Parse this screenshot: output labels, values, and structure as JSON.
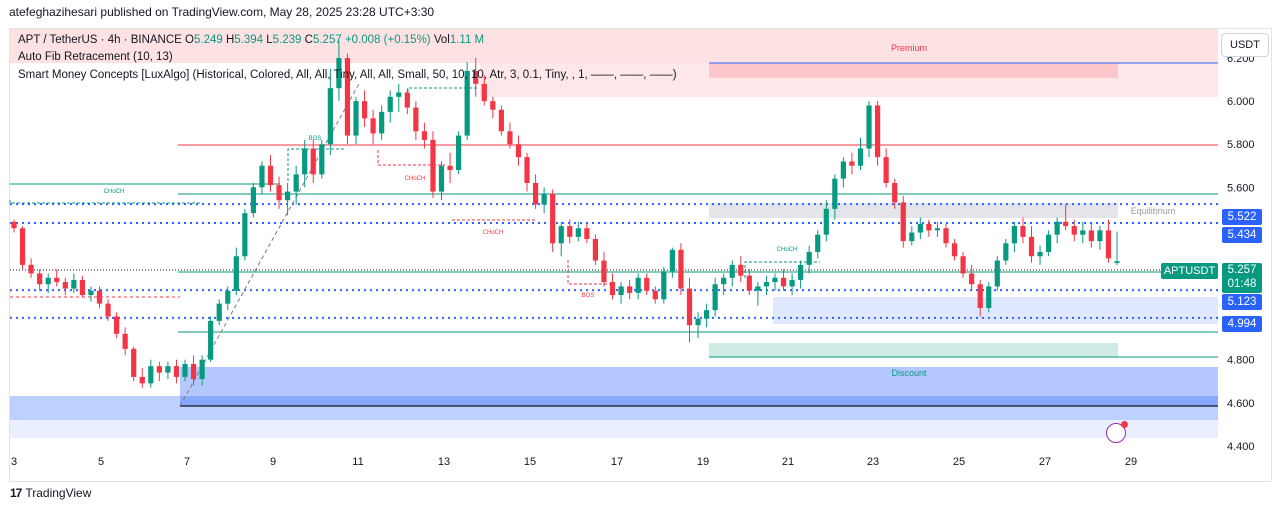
{
  "header": {
    "text": "atefeghazihesari published on TradingView.com, May 28, 2025 23:28 UTC+3:30"
  },
  "legend": {
    "line1": {
      "symbol": "APT / TetherUS · 4h · BINANCE",
      "o_label": "O",
      "o": "5.249",
      "h_label": "H",
      "h": "5.394",
      "l_label": "L",
      "l": "5.239",
      "c_label": "C",
      "c": "5.257",
      "change": "+0.008 (+0.15%)",
      "vol_label": "Vol",
      "vol": "1.11 M"
    },
    "line2": "Auto Fib Retracement (10, 13)",
    "line3": "Smart Money Concepts [LuxAlgo] (Historical, Colored, All, All, Tiny, All, All, Small, 50, 10, 10, Atr, 3, 0.1, Tiny, , 1, ——, ——, ——)"
  },
  "currency_button": "USDT",
  "footer": {
    "logo": "17",
    "brand": "TradingView"
  },
  "price_tags": {
    "symbol": "APTUSDT",
    "last": "5.257",
    "countdown": "01:48",
    "levels": [
      "5.522",
      "5.434",
      "5.123",
      "4.994"
    ]
  },
  "chart_data": {
    "type": "candlestick",
    "title": "APT / TetherUS · 4h · BINANCE",
    "ylim": [
      4.39,
      6.33
    ],
    "y_ticks": [
      "6.200",
      "6.000",
      "5.800",
      "5.600",
      "5.400",
      "4.800",
      "4.600",
      "4.400"
    ],
    "x_ticks": [
      "3",
      "5",
      "7",
      "9",
      "11",
      "13",
      "15",
      "17",
      "19",
      "21",
      "23",
      "25",
      "27",
      "29"
    ],
    "colors": {
      "up": "#089981",
      "down": "#f23645",
      "blue_line": "#2962ff",
      "zone_blue": "#2962ff"
    },
    "labels": {
      "premium": "Premium",
      "equilibrium": "Equilibrium",
      "discount": "Discount",
      "choch": "CHoCH",
      "bos": "BOS"
    },
    "horizontal_levels": [
      5.522,
      5.434,
      5.123,
      4.994
    ],
    "candles": [
      [
        0,
        5.44,
        5.45,
        5.39,
        5.41
      ],
      [
        1,
        5.41,
        5.42,
        5.22,
        5.24
      ],
      [
        2,
        5.24,
        5.27,
        5.18,
        5.2
      ],
      [
        3,
        5.2,
        5.22,
        5.12,
        5.15
      ],
      [
        4,
        5.15,
        5.2,
        5.11,
        5.18
      ],
      [
        5,
        5.18,
        5.22,
        5.14,
        5.16
      ],
      [
        6,
        5.16,
        5.18,
        5.1,
        5.13
      ],
      [
        7,
        5.13,
        5.2,
        5.11,
        5.17
      ],
      [
        8,
        5.17,
        5.19,
        5.09,
        5.1
      ],
      [
        9,
        5.1,
        5.14,
        5.07,
        5.12
      ],
      [
        10,
        5.12,
        5.14,
        5.04,
        5.06
      ],
      [
        11,
        5.06,
        5.08,
        4.98,
        5.0
      ],
      [
        12,
        5.0,
        5.02,
        4.9,
        4.92
      ],
      [
        13,
        4.92,
        4.95,
        4.82,
        4.85
      ],
      [
        14,
        4.85,
        4.86,
        4.7,
        4.72
      ],
      [
        15,
        4.72,
        4.76,
        4.67,
        4.69
      ],
      [
        16,
        4.69,
        4.8,
        4.67,
        4.77
      ],
      [
        17,
        4.77,
        4.79,
        4.7,
        4.74
      ],
      [
        18,
        4.74,
        4.79,
        4.71,
        4.77
      ],
      [
        19,
        4.77,
        4.8,
        4.69,
        4.72
      ],
      [
        20,
        4.72,
        4.8,
        4.7,
        4.78
      ],
      [
        21,
        4.78,
        4.82,
        4.68,
        4.71
      ],
      [
        22,
        4.71,
        4.82,
        4.68,
        4.8
      ],
      [
        23,
        4.8,
        5.0,
        4.79,
        4.98
      ],
      [
        24,
        4.98,
        5.08,
        4.96,
        5.06
      ],
      [
        25,
        5.06,
        5.14,
        5.03,
        5.12
      ],
      [
        26,
        5.12,
        5.32,
        5.1,
        5.28
      ],
      [
        27,
        5.28,
        5.5,
        5.26,
        5.48
      ],
      [
        28,
        5.48,
        5.62,
        5.46,
        5.6
      ],
      [
        29,
        5.6,
        5.72,
        5.57,
        5.7
      ],
      [
        30,
        5.7,
        5.75,
        5.58,
        5.61
      ],
      [
        31,
        5.61,
        5.65,
        5.5,
        5.54
      ],
      [
        32,
        5.54,
        5.62,
        5.47,
        5.58
      ],
      [
        33,
        5.58,
        5.7,
        5.52,
        5.66
      ],
      [
        34,
        5.66,
        5.82,
        5.6,
        5.78
      ],
      [
        35,
        5.78,
        5.82,
        5.62,
        5.66
      ],
      [
        36,
        5.66,
        5.82,
        5.64,
        5.8
      ],
      [
        37,
        5.8,
        6.15,
        5.75,
        6.06
      ],
      [
        38,
        6.06,
        6.28,
        6.0,
        6.2
      ],
      [
        39,
        6.2,
        6.22,
        5.8,
        5.84
      ],
      [
        40,
        5.84,
        6.02,
        5.8,
        6.0
      ],
      [
        41,
        6.0,
        6.05,
        5.88,
        5.92
      ],
      [
        42,
        5.92,
        5.96,
        5.8,
        5.85
      ],
      [
        43,
        5.85,
        5.98,
        5.82,
        5.95
      ],
      [
        44,
        5.95,
        6.05,
        5.9,
        6.02
      ],
      [
        45,
        6.02,
        6.08,
        5.95,
        6.04
      ],
      [
        46,
        6.04,
        6.06,
        5.94,
        5.97
      ],
      [
        47,
        5.97,
        6.0,
        5.82,
        5.86
      ],
      [
        48,
        5.86,
        5.9,
        5.78,
        5.82
      ],
      [
        49,
        5.82,
        5.86,
        5.55,
        5.58
      ],
      [
        50,
        5.58,
        5.72,
        5.54,
        5.7
      ],
      [
        51,
        5.7,
        5.76,
        5.62,
        5.68
      ],
      [
        52,
        5.68,
        5.86,
        5.66,
        5.84
      ],
      [
        53,
        5.84,
        6.18,
        5.82,
        6.14
      ],
      [
        54,
        6.14,
        6.2,
        6.02,
        6.08
      ],
      [
        55,
        6.08,
        6.12,
        5.98,
        6.0
      ],
      [
        56,
        6.0,
        6.02,
        5.92,
        5.96
      ],
      [
        57,
        5.96,
        5.98,
        5.84,
        5.86
      ],
      [
        58,
        5.86,
        5.9,
        5.78,
        5.8
      ],
      [
        59,
        5.8,
        5.84,
        5.7,
        5.74
      ],
      [
        60,
        5.74,
        5.76,
        5.58,
        5.62
      ],
      [
        61,
        5.62,
        5.66,
        5.5,
        5.52
      ],
      [
        62,
        5.52,
        5.6,
        5.48,
        5.57
      ],
      [
        63,
        5.57,
        5.59,
        5.3,
        5.34
      ],
      [
        64,
        5.34,
        5.44,
        5.28,
        5.42
      ],
      [
        65,
        5.42,
        5.45,
        5.34,
        5.37
      ],
      [
        66,
        5.37,
        5.44,
        5.35,
        5.41
      ],
      [
        67,
        5.41,
        5.43,
        5.34,
        5.36
      ],
      [
        68,
        5.36,
        5.38,
        5.24,
        5.26
      ],
      [
        69,
        5.26,
        5.3,
        5.14,
        5.16
      ],
      [
        70,
        5.16,
        5.2,
        5.08,
        5.1
      ],
      [
        71,
        5.1,
        5.16,
        5.06,
        5.14
      ],
      [
        72,
        5.14,
        5.17,
        5.08,
        5.11
      ],
      [
        73,
        5.11,
        5.2,
        5.08,
        5.18
      ],
      [
        74,
        5.18,
        5.2,
        5.1,
        5.12
      ],
      [
        75,
        5.12,
        5.14,
        5.06,
        5.08
      ],
      [
        76,
        5.08,
        5.23,
        5.06,
        5.21
      ],
      [
        77,
        5.21,
        5.32,
        5.18,
        5.31
      ],
      [
        78,
        5.31,
        5.34,
        5.1,
        5.13
      ],
      [
        79,
        5.13,
        5.18,
        4.88,
        4.96
      ],
      [
        80,
        4.96,
        5.02,
        4.9,
        4.99
      ],
      [
        81,
        4.99,
        5.06,
        4.95,
        5.03
      ],
      [
        82,
        5.03,
        5.18,
        5.0,
        5.15
      ],
      [
        83,
        5.15,
        5.2,
        5.1,
        5.18
      ],
      [
        84,
        5.18,
        5.26,
        5.14,
        5.24
      ],
      [
        85,
        5.24,
        5.28,
        5.16,
        5.19
      ],
      [
        86,
        5.19,
        5.22,
        5.1,
        5.12
      ],
      [
        87,
        5.12,
        5.16,
        5.05,
        5.14
      ],
      [
        88,
        5.14,
        5.19,
        5.1,
        5.16
      ],
      [
        89,
        5.16,
        5.2,
        5.12,
        5.18
      ],
      [
        90,
        5.18,
        5.22,
        5.12,
        5.14
      ],
      [
        91,
        5.14,
        5.2,
        5.1,
        5.17
      ],
      [
        92,
        5.17,
        5.26,
        5.13,
        5.24
      ],
      [
        93,
        5.24,
        5.33,
        5.2,
        5.3
      ],
      [
        94,
        5.3,
        5.4,
        5.27,
        5.38
      ],
      [
        95,
        5.38,
        5.54,
        5.35,
        5.5
      ],
      [
        96,
        5.5,
        5.66,
        5.45,
        5.64
      ],
      [
        97,
        5.64,
        5.74,
        5.6,
        5.72
      ],
      [
        98,
        5.72,
        5.76,
        5.66,
        5.7
      ],
      [
        99,
        5.7,
        5.83,
        5.68,
        5.78
      ],
      [
        100,
        5.78,
        6.0,
        5.74,
        5.98
      ],
      [
        101,
        5.98,
        6.0,
        5.7,
        5.74
      ],
      [
        102,
        5.74,
        5.78,
        5.6,
        5.62
      ],
      [
        103,
        5.62,
        5.64,
        5.5,
        5.53
      ],
      [
        104,
        5.53,
        5.56,
        5.32,
        5.35
      ],
      [
        105,
        5.35,
        5.42,
        5.33,
        5.39
      ],
      [
        106,
        5.39,
        5.46,
        5.36,
        5.43
      ],
      [
        107,
        5.43,
        5.45,
        5.37,
        5.4
      ],
      [
        108,
        5.4,
        5.44,
        5.37,
        5.41
      ],
      [
        109,
        5.41,
        5.43,
        5.32,
        5.34
      ],
      [
        110,
        5.34,
        5.36,
        5.26,
        5.28
      ],
      [
        111,
        5.28,
        5.3,
        5.18,
        5.2
      ],
      [
        112,
        5.2,
        5.24,
        5.12,
        5.15
      ],
      [
        113,
        5.15,
        5.17,
        5.0,
        5.04
      ],
      [
        114,
        5.04,
        5.16,
        5.02,
        5.14
      ],
      [
        115,
        5.14,
        5.28,
        5.12,
        5.26
      ],
      [
        116,
        5.26,
        5.36,
        5.24,
        5.34
      ],
      [
        117,
        5.34,
        5.44,
        5.3,
        5.42
      ],
      [
        118,
        5.42,
        5.46,
        5.34,
        5.37
      ],
      [
        119,
        5.37,
        5.42,
        5.25,
        5.28
      ],
      [
        120,
        5.28,
        5.33,
        5.24,
        5.3
      ],
      [
        121,
        5.3,
        5.4,
        5.28,
        5.38
      ],
      [
        122,
        5.38,
        5.46,
        5.34,
        5.44
      ],
      [
        123,
        5.44,
        5.52,
        5.4,
        5.42
      ],
      [
        124,
        5.42,
        5.45,
        5.35,
        5.38
      ],
      [
        125,
        5.38,
        5.44,
        5.34,
        5.4
      ],
      [
        126,
        5.4,
        5.43,
        5.32,
        5.35
      ],
      [
        127,
        5.35,
        5.42,
        5.31,
        5.4
      ],
      [
        128,
        5.4,
        5.45,
        5.25,
        5.27
      ],
      [
        129,
        5.249,
        5.394,
        5.239,
        5.257
      ]
    ]
  }
}
